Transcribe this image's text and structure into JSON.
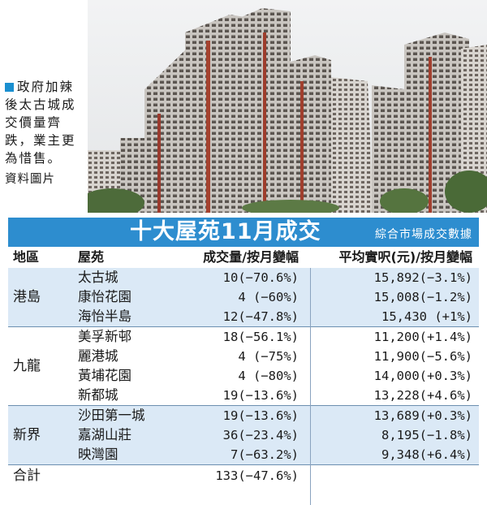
{
  "caption": {
    "text": "政府加辣後太古城成交價量齊跌，業主更為惜售。",
    "credit": "資料圖片"
  },
  "table": {
    "title": "十大屋苑11月成交",
    "subtitle": "綜合市場成交數據",
    "headers": {
      "region": "地區",
      "estate": "屋苑",
      "volume": "成交量/按月變幅",
      "price": "平均實呎(元)/按月變幅"
    },
    "groups": [
      {
        "region": "港島",
        "rows": [
          {
            "estate": "太古城",
            "volume": "10(−70.6%)",
            "price": "15,892(−3.1%)"
          },
          {
            "estate": "康怡花園",
            "volume": "4 (−60%)",
            "price": "15,008(−1.2%)"
          },
          {
            "estate": "海怡半島",
            "volume": "12(−47.8%)",
            "price": "15,430 (+1%)"
          }
        ]
      },
      {
        "region": "九龍",
        "rows": [
          {
            "estate": "美孚新邨",
            "volume": "18(−56.1%)",
            "price": "11,200(+1.4%)"
          },
          {
            "estate": "麗港城",
            "volume": "4 (−75%)",
            "price": "11,900(−5.6%)"
          },
          {
            "estate": "黃埔花園",
            "volume": "4 (−80%)",
            "price": "14,000(+0.3%)"
          },
          {
            "estate": "新都城",
            "volume": "19(−13.6%)",
            "price": "13,228(+4.6%)"
          }
        ]
      },
      {
        "region": "新界",
        "rows": [
          {
            "estate": "沙田第一城",
            "volume": "19(−13.6%)",
            "price": "13,689(+0.3%)"
          },
          {
            "estate": "嘉湖山莊",
            "volume": "36(−23.4%)",
            "price": "8,195(−1.8%)"
          },
          {
            "estate": "映灣園",
            "volume": "7(−63.2%)",
            "price": "9,348(+6.4%)"
          }
        ]
      }
    ],
    "total": {
      "label": "合計",
      "volume": "133(−47.6%)"
    }
  },
  "colors": {
    "accent": "#2d8dcf",
    "shade": "#dbe9f6"
  }
}
